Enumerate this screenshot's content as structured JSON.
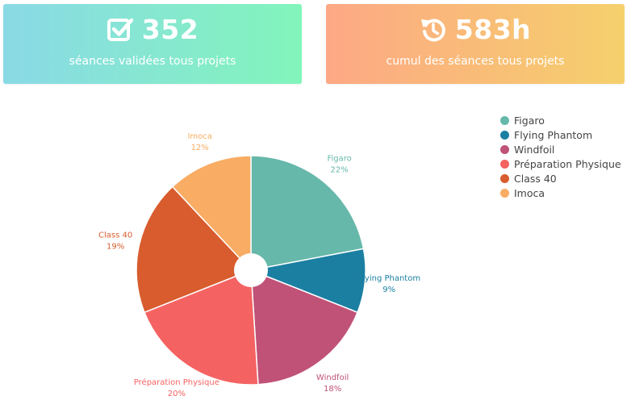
{
  "stats": {
    "sessions": {
      "icon": "check-square-icon",
      "value": "352",
      "label": "séances validées tous projets"
    },
    "duration": {
      "icon": "history-clock-icon",
      "value": "583h",
      "label": "cumul des séances tous projets"
    }
  },
  "chart_data": {
    "type": "pie",
    "title": "",
    "legend_position": "top-right",
    "slices": [
      {
        "label": "Figaro",
        "percent_label": "22%",
        "value": 22,
        "color": "#66b8aa"
      },
      {
        "label": "Flying Phantom",
        "percent_label": "9%",
        "value": 9,
        "color": "#1b7fa2"
      },
      {
        "label": "Windfoil",
        "percent_label": "18%",
        "value": 18,
        "color": "#c05277"
      },
      {
        "label": "Préparation Physique",
        "percent_label": "20%",
        "value": 20,
        "color": "#f56262"
      },
      {
        "label": "Class 40",
        "percent_label": "19%",
        "value": 19,
        "color": "#d85c2e"
      },
      {
        "label": "Imoca",
        "percent_label": "12%",
        "value": 12,
        "color": "#f9ac63"
      }
    ]
  }
}
